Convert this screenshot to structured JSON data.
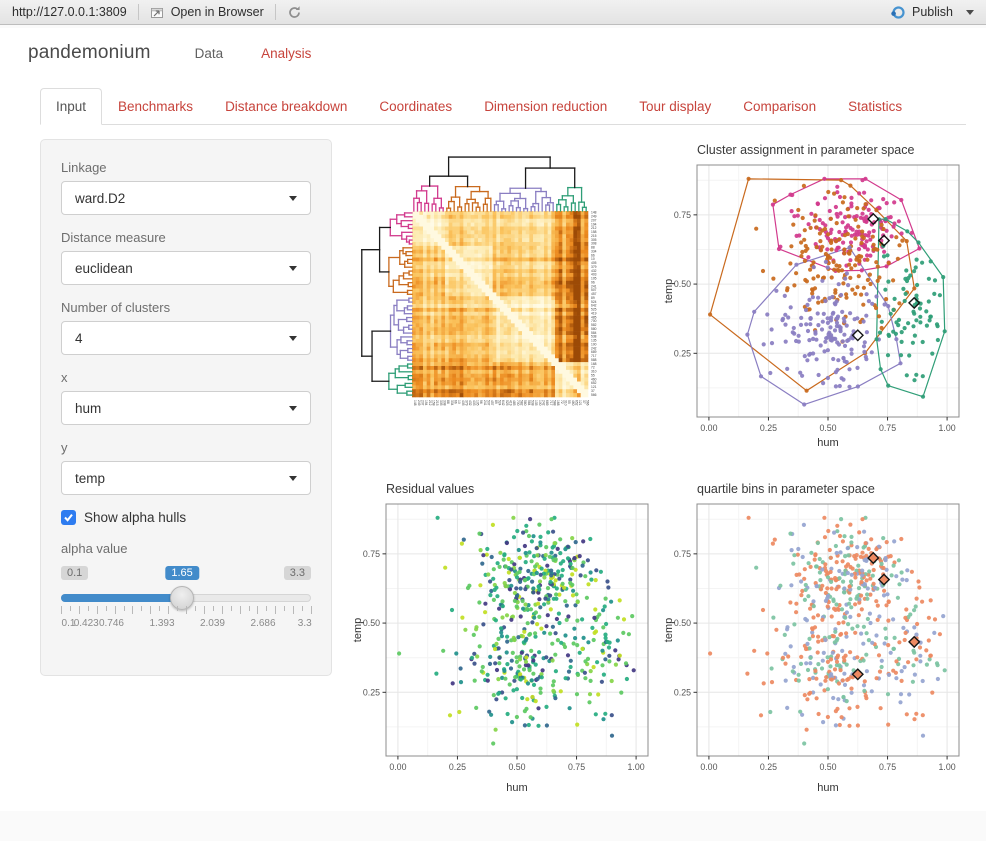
{
  "toolbar": {
    "url": "http://127.0.0.1:3809",
    "open_in_browser": "Open in Browser",
    "publish": "Publish"
  },
  "header": {
    "title": "pandemonium",
    "nav": [
      {
        "label": "Data",
        "active": false
      },
      {
        "label": "Analysis",
        "active": true
      }
    ]
  },
  "tabs": [
    {
      "label": "Input",
      "active": true
    },
    {
      "label": "Benchmarks",
      "active": false
    },
    {
      "label": "Distance breakdown",
      "active": false
    },
    {
      "label": "Coordinates",
      "active": false
    },
    {
      "label": "Dimension reduction",
      "active": false
    },
    {
      "label": "Tour display",
      "active": false
    },
    {
      "label": "Comparison",
      "active": false
    },
    {
      "label": "Statistics",
      "active": false
    }
  ],
  "sidebar": {
    "selects": [
      {
        "id": "linkage",
        "label": "Linkage",
        "value": "ward.D2"
      },
      {
        "id": "distance",
        "label": "Distance measure",
        "value": "euclidean"
      },
      {
        "id": "clusters",
        "label": "Number of clusters",
        "value": "4"
      },
      {
        "id": "x",
        "label": "x",
        "value": "hum"
      },
      {
        "id": "y",
        "label": "y",
        "value": "temp"
      }
    ],
    "checkbox": {
      "label": "Show alpha hulls",
      "checked": true
    },
    "slider": {
      "label": "alpha value",
      "min": "0.1",
      "max": "3.3",
      "value": "1.65",
      "ticks": [
        "0.1",
        "0.423",
        "0.746",
        "1.393",
        "2.039",
        "2.686",
        "3.3"
      ]
    }
  },
  "colors": {
    "accent_red": "#c7443c",
    "slider_blue": "#428bca",
    "checkbox_blue": "#2e7cf0",
    "publish_blue": "#4693d0",
    "cluster_palette": [
      "#d23a8d",
      "#c96a1e",
      "#8a7ec2",
      "#2f9e77"
    ],
    "quartile_palette": [
      "#ed8a62",
      "#96a5d1",
      "#7dc4a3"
    ],
    "viridis_palette": [
      "#443983",
      "#3b528b",
      "#31688e",
      "#21918c",
      "#27ad81",
      "#27ad81",
      "#5ec962",
      "#5ec962",
      "#86d549",
      "#c2df23"
    ],
    "heat_stops": [
      "#fffbe6",
      "#fdeab0",
      "#fbc45e",
      "#ec8a1f",
      "#9c4a06"
    ]
  },
  "chart_data": [
    {
      "type": "heatmap",
      "name": "cluster-distance-heatmap-with-dendrograms",
      "n": 48,
      "cluster_sizes": [
        9,
        13,
        17,
        9
      ],
      "row_labels": [
        "148",
        "249",
        "207",
        "194",
        "212",
        "158",
        "215",
        "305",
        "308",
        "88",
        "334",
        "66",
        "10",
        "405",
        "379",
        "432",
        "403",
        "105",
        "96",
        "241",
        "507",
        "457",
        "89",
        "524",
        "642",
        "525",
        "419",
        "485",
        "700",
        "582",
        "580",
        "584",
        "538",
        "135",
        "100",
        "242",
        "689",
        "717",
        "588",
        "168",
        "72",
        "310",
        "55",
        "460",
        "652",
        "121",
        "37",
        "566"
      ]
    },
    {
      "type": "scatter",
      "title": "Cluster assignment in parameter space",
      "xlabel": "hum",
      "ylabel": "temp",
      "xlim": [
        0,
        1
      ],
      "ylim": [
        0.02,
        0.93
      ],
      "xticks": {
        "values": [
          0,
          0.25,
          0.5,
          0.75,
          1
        ],
        "labels": [
          "0.00",
          "0.25",
          "0.50",
          "0.75",
          "1.00"
        ]
      },
      "yticks": {
        "values": [
          0.25,
          0.5,
          0.75
        ],
        "labels": [
          "0.25",
          "0.50",
          "0.75"
        ]
      },
      "show_hulls": true,
      "clusters": [
        {
          "name": "cluster-1",
          "color": "#d23a8d",
          "cx": 0.6,
          "cy": 0.705,
          "sx": 0.115,
          "sy": 0.075,
          "n": 150,
          "extra": [
            [
              0.3,
              0.635
            ],
            [
              0.645,
              0.875
            ]
          ]
        },
        {
          "name": "cluster-2",
          "color": "#c96a1e",
          "cx": 0.565,
          "cy": 0.585,
          "sx": 0.14,
          "sy": 0.115,
          "n": 175,
          "extra": [
            [
              0.005,
              0.39
            ],
            [
              0.41,
              0.115
            ]
          ]
        },
        {
          "name": "cluster-3",
          "color": "#8a7ec2",
          "cx": 0.5,
          "cy": 0.33,
          "sx": 0.12,
          "sy": 0.095,
          "n": 160,
          "extra": [
            [
              0.19,
              0.4
            ],
            [
              0.4,
              0.065
            ]
          ]
        },
        {
          "name": "cluster-4",
          "color": "#2f9e77",
          "cx": 0.845,
          "cy": 0.4,
          "sx": 0.065,
          "sy": 0.12,
          "n": 80,
          "extra": [
            [
              0.97,
              0.46
            ],
            [
              0.88,
              0.65
            ],
            [
              0.735,
              0.6
            ]
          ]
        }
      ],
      "benchmarks": [
        [
          0.69,
          0.735
        ],
        [
          0.735,
          0.657
        ],
        [
          0.625,
          0.315
        ],
        [
          0.862,
          0.432
        ]
      ]
    },
    {
      "type": "scatter",
      "title": "Residual values",
      "xlabel": "hum",
      "ylabel": "temp",
      "xticks": {
        "values": [
          0,
          0.25,
          0.5,
          0.75,
          1
        ],
        "labels": [
          "0.00",
          "0.25",
          "0.50",
          "0.75",
          "1.00"
        ]
      },
      "yticks": {
        "values": [
          0.25,
          0.5,
          0.75
        ],
        "labels": [
          "0.25",
          "0.50",
          "0.75"
        ]
      },
      "palette_key": "viridis_palette"
    },
    {
      "type": "scatter",
      "title": "quartile bins in parameter space",
      "xlabel": "hum",
      "ylabel": "temp",
      "xticks": {
        "values": [
          0,
          0.25,
          0.5,
          0.75,
          1
        ],
        "labels": [
          "0.00",
          "0.25",
          "0.50",
          "0.75",
          "1.00"
        ]
      },
      "yticks": {
        "values": [
          0.25,
          0.5,
          0.75
        ],
        "labels": [
          "0.25",
          "0.50",
          "0.75"
        ]
      },
      "palette_key": "quartile_palette",
      "benchmarks": [
        [
          0.69,
          0.735
        ],
        [
          0.735,
          0.657
        ],
        [
          0.625,
          0.315
        ],
        [
          0.862,
          0.432
        ]
      ]
    }
  ]
}
